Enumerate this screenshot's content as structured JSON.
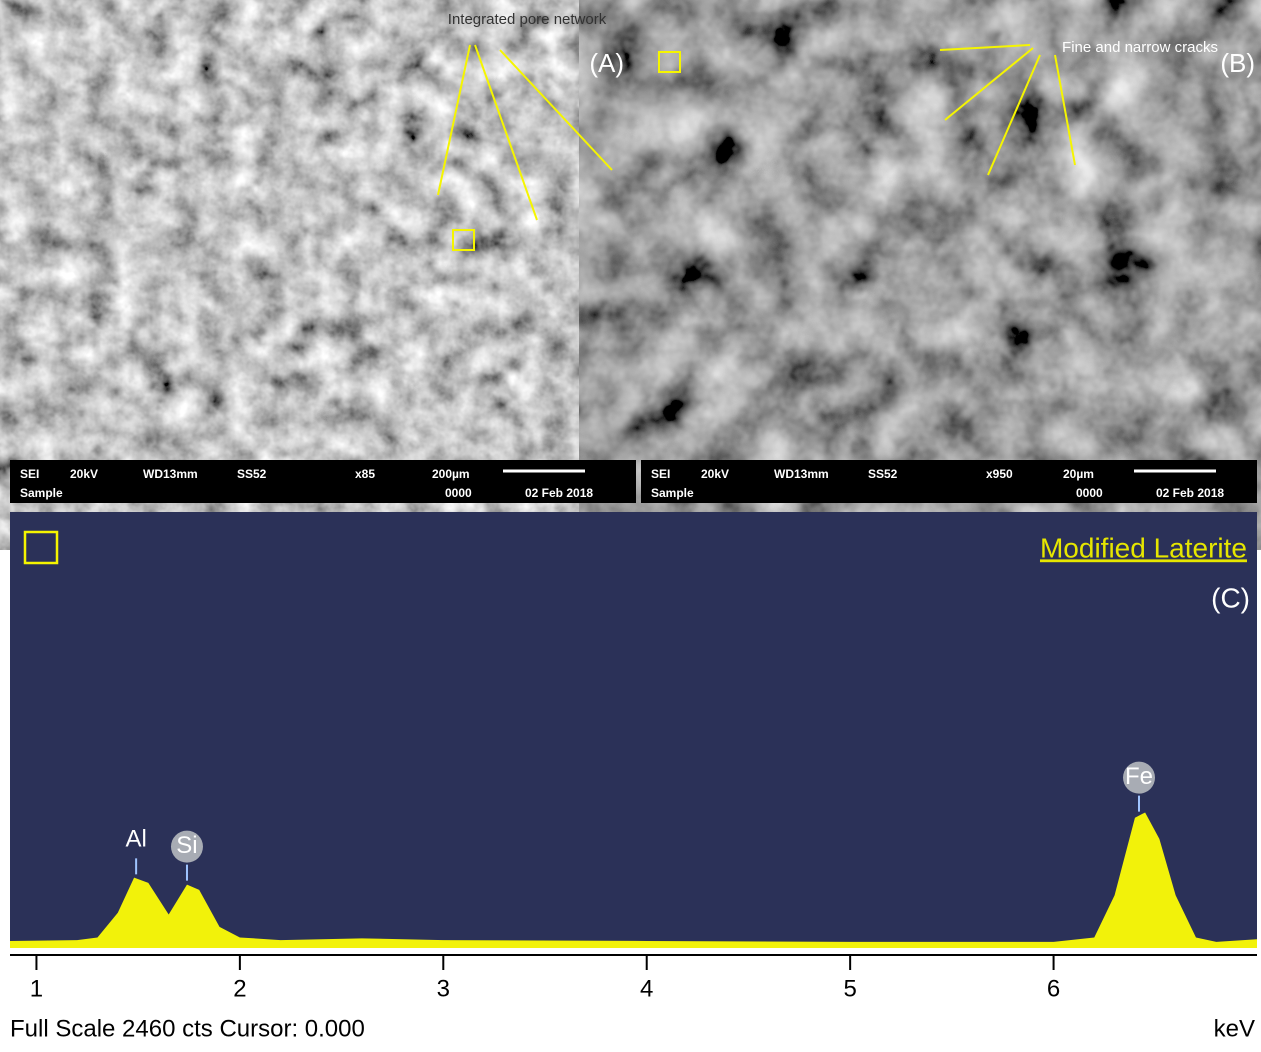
{
  "panels": [
    {
      "label": "(A)",
      "annotation": "Integrated pore network",
      "info_row1": [
        "SEI",
        "20kV",
        "WD13mm",
        "SS52",
        "x85",
        "200µm"
      ],
      "info_row2": [
        "Sample",
        "0000",
        "02 Feb 2018"
      ]
    },
    {
      "label": "(B)",
      "annotation": "Fine and narrow cracks",
      "info_row1": [
        "SEI",
        "20kV",
        "WD13mm",
        "SS52",
        "x950",
        "20µm"
      ],
      "info_row2": [
        "Sample",
        "0000",
        "02 Feb 2018"
      ]
    }
  ],
  "chart_data": {
    "type": "area",
    "title": "Modified Laterite",
    "label": "(C)",
    "footer": "Full Scale 2460 cts Cursor: 0.000",
    "x_unit": "keV",
    "color": "#f2f20a",
    "x": [
      0.87,
      1.2,
      1.3,
      1.4,
      1.48,
      1.55,
      1.65,
      1.74,
      1.8,
      1.9,
      2.0,
      2.2,
      2.6,
      3.0,
      4.0,
      5.0,
      6.0,
      6.2,
      6.3,
      6.4,
      6.45,
      6.52,
      6.6,
      6.7,
      6.8,
      7.0
    ],
    "values": [
      40,
      45,
      60,
      200,
      400,
      370,
      190,
      360,
      330,
      120,
      60,
      45,
      55,
      45,
      40,
      35,
      35,
      60,
      300,
      740,
      770,
      620,
      300,
      60,
      35,
      50
    ],
    "xlim": [
      0.87,
      7.0
    ],
    "ylim": [
      0,
      2460
    ],
    "xticks": [
      1,
      2,
      3,
      4,
      5,
      6
    ],
    "peak_labels": [
      {
        "label": "Al",
        "x": 1.49
      },
      {
        "label": "Si",
        "x": 1.74
      },
      {
        "label": "Fe",
        "x": 6.42
      }
    ]
  }
}
